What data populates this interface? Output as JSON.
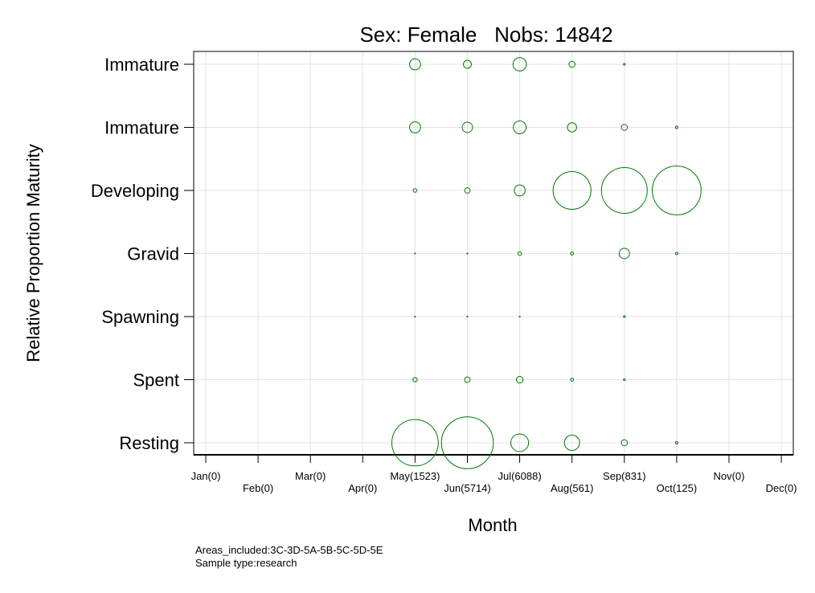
{
  "chart_data": {
    "type": "scatter",
    "title": "Sex: Female   Nobs: 14842",
    "xlabel": "Month",
    "ylabel": "Relative Proportion Maturity",
    "x_categories": [
      "Jan(0)",
      "Feb(0)",
      "Mar(0)",
      "Apr(0)",
      "May(1523)",
      "Jun(5714)",
      "Jul(6088)",
      "Aug(561)",
      "Sep(831)",
      "Oct(125)",
      "Nov(0)",
      "Dec(0)"
    ],
    "y_categories": [
      "Immature",
      "Immature",
      "Developing",
      "Gravid",
      "Spawning",
      "Spent",
      "Resting"
    ],
    "grid": true,
    "bubble_color": "#007a00",
    "points": [
      {
        "month": "May(1523)",
        "stage": 0,
        "size": 0.18
      },
      {
        "month": "Jun(5714)",
        "stage": 0,
        "size": 0.13
      },
      {
        "month": "Jul(6088)",
        "stage": 0,
        "size": 0.22
      },
      {
        "month": "Aug(561)",
        "stage": 0,
        "size": 0.1
      },
      {
        "month": "Sep(831)",
        "stage": 0,
        "size": 0.03
      },
      {
        "month": "May(1523)",
        "stage": 1,
        "size": 0.18
      },
      {
        "month": "Jun(5714)",
        "stage": 1,
        "size": 0.17
      },
      {
        "month": "Jul(6088)",
        "stage": 1,
        "size": 0.21
      },
      {
        "month": "Aug(561)",
        "stage": 1,
        "size": 0.15
      },
      {
        "month": "Sep(831)",
        "stage": 1,
        "size": 0.1
      },
      {
        "month": "Oct(125)",
        "stage": 1,
        "size": 0.04
      },
      {
        "month": "May(1523)",
        "stage": 2,
        "size": 0.06
      },
      {
        "month": "Jun(5714)",
        "stage": 2,
        "size": 0.09
      },
      {
        "month": "Jul(6088)",
        "stage": 2,
        "size": 0.18
      },
      {
        "month": "Aug(561)",
        "stage": 2,
        "size": 0.62
      },
      {
        "month": "Sep(831)",
        "stage": 2,
        "size": 0.75
      },
      {
        "month": "Oct(125)",
        "stage": 2,
        "size": 0.8
      },
      {
        "month": "May(1523)",
        "stage": 3,
        "size": 0.005
      },
      {
        "month": "Jun(5714)",
        "stage": 3,
        "size": 0.005
      },
      {
        "month": "Jul(6088)",
        "stage": 3,
        "size": 0.06
      },
      {
        "month": "Aug(561)",
        "stage": 3,
        "size": 0.05
      },
      {
        "month": "Sep(831)",
        "stage": 3,
        "size": 0.17
      },
      {
        "month": "Oct(125)",
        "stage": 3,
        "size": 0.04
      },
      {
        "month": "May(1523)",
        "stage": 4,
        "size": 0.004
      },
      {
        "month": "Jun(5714)",
        "stage": 4,
        "size": 0.004
      },
      {
        "month": "Jul(6088)",
        "stage": 4,
        "size": 0.004
      },
      {
        "month": "Sep(831)",
        "stage": 4,
        "size": 0.03
      },
      {
        "month": "May(1523)",
        "stage": 5,
        "size": 0.07
      },
      {
        "month": "Jun(5714)",
        "stage": 5,
        "size": 0.09
      },
      {
        "month": "Jul(6088)",
        "stage": 5,
        "size": 0.11
      },
      {
        "month": "Aug(561)",
        "stage": 5,
        "size": 0.05
      },
      {
        "month": "Sep(831)",
        "stage": 5,
        "size": 0.03
      },
      {
        "month": "May(1523)",
        "stage": 6,
        "size": 0.76
      },
      {
        "month": "Jun(5714)",
        "stage": 6,
        "size": 0.85
      },
      {
        "month": "Jul(6088)",
        "stage": 6,
        "size": 0.29
      },
      {
        "month": "Aug(561)",
        "stage": 6,
        "size": 0.25
      },
      {
        "month": "Sep(831)",
        "stage": 6,
        "size": 0.1
      },
      {
        "month": "Oct(125)",
        "stage": 6,
        "size": 0.04
      }
    ]
  },
  "footnote": {
    "line1": "Areas_included:3C-3D-5A-5B-5C-5D-5E",
    "line2": "Sample type:research"
  }
}
